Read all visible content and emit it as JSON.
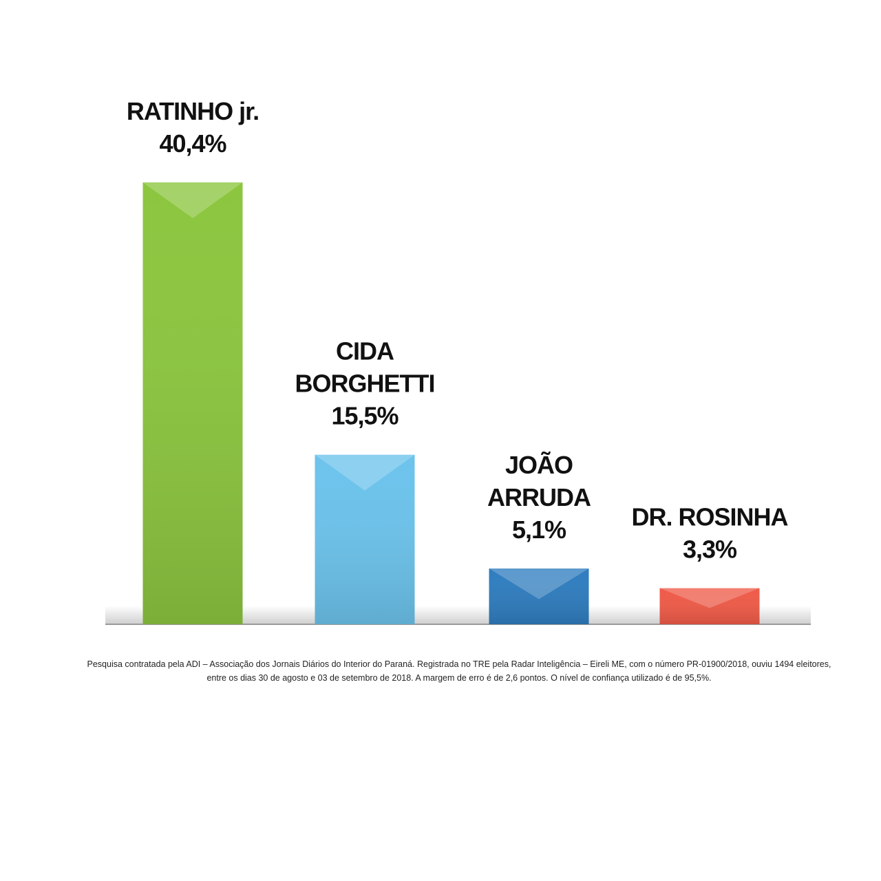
{
  "chart_data": {
    "type": "bar",
    "categories": [
      [
        "RATINHO jr."
      ],
      [
        "CIDA",
        "BORGHETTI"
      ],
      [
        "JOÃO",
        "ARRUDA"
      ],
      [
        "DR. ROSINHA"
      ]
    ],
    "values": [
      40.4,
      15.5,
      5.1,
      3.3
    ],
    "value_labels": [
      "40,4%",
      "15,5%",
      "5,1%",
      "3,3%"
    ],
    "colors": [
      "#8cc63f",
      "#6cc3ec",
      "#2f7dbf",
      "#ef5b48"
    ],
    "note": [
      "Pesquisa contratada pela ADI – Associação dos Jornais Diários do Interior do Paraná. Registrada no TRE pela Radar Inteligência – Eireli ME, com o número PR-01900/2018, ouviu 1494 eleitores,",
      "entre os dias 30 de agosto e 03 de setembro de 2018. A margem de erro é de 2,6 pontos. O nível de confiança utilizado é de 95,5%."
    ]
  }
}
